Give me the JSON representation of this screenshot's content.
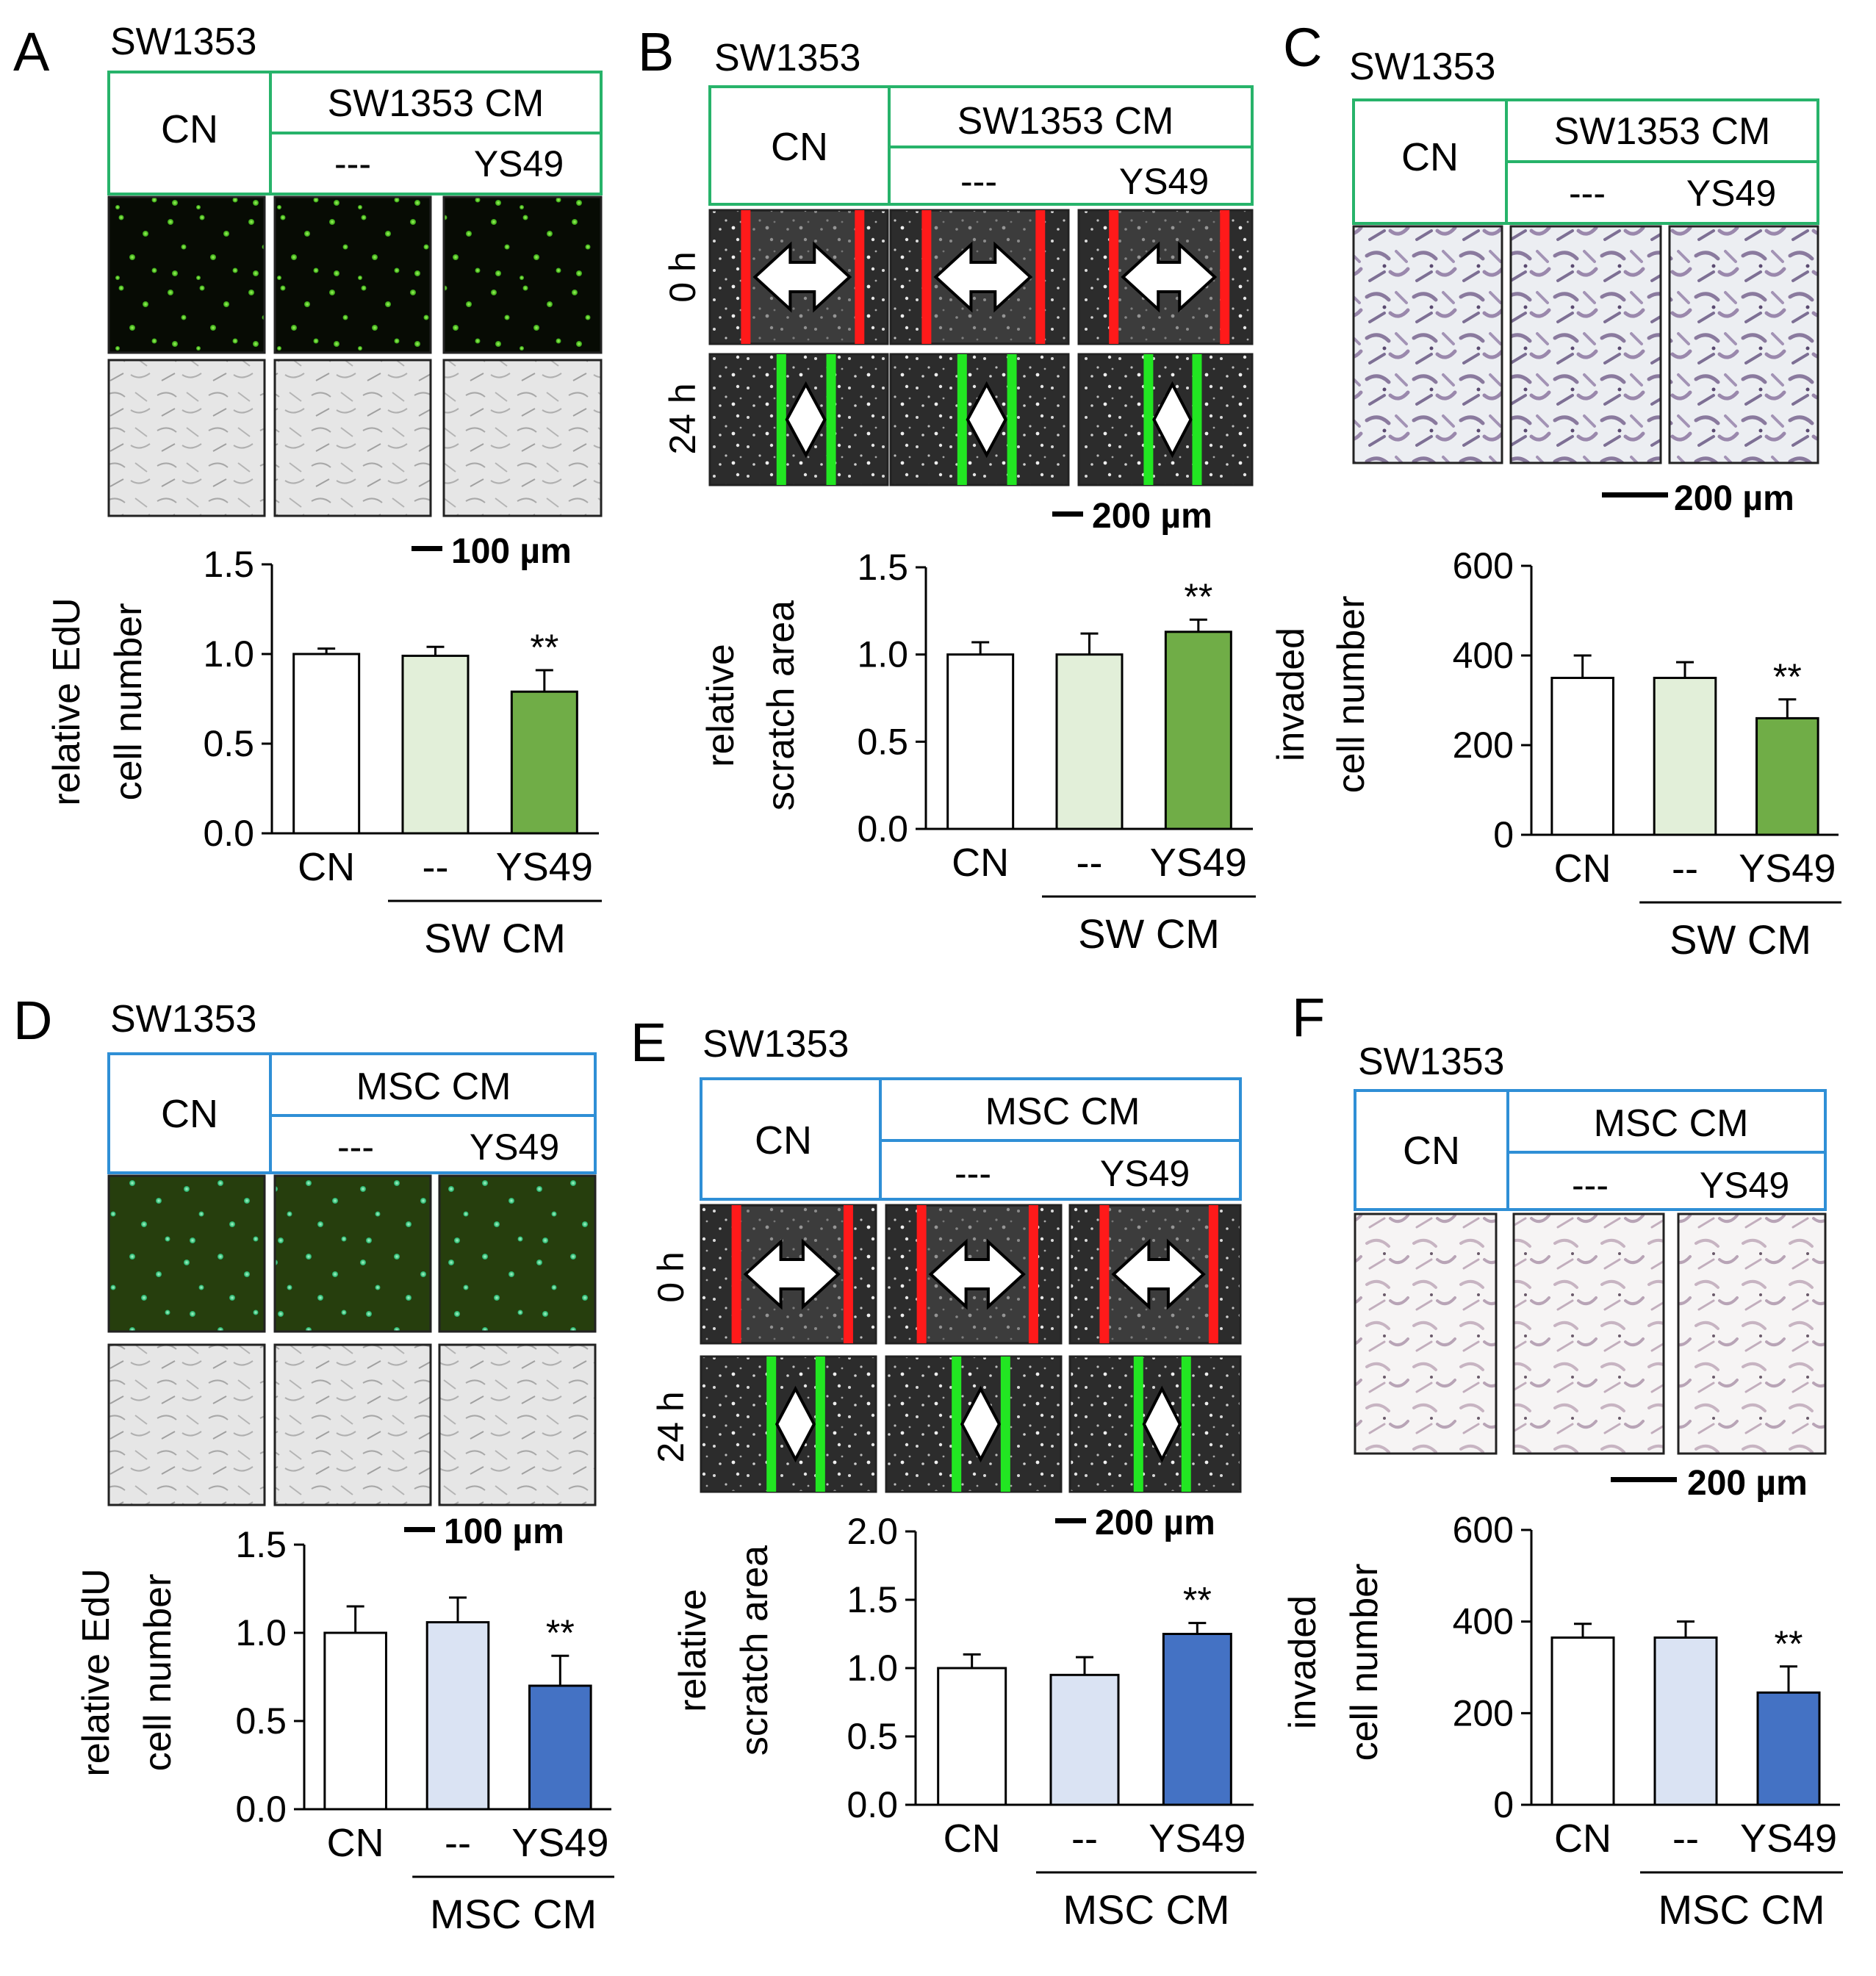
{
  "figure": {
    "cell_line": "SW1353",
    "hdr_cn": "CN",
    "hdr_none": "---",
    "hdr_ys49": "YS49",
    "tick_none": "--",
    "time_0h": "0 h",
    "time_24h": "24 h",
    "colors": {
      "green_frame": "#27b36a",
      "blue_frame": "#2f8fd6",
      "green_light": "#e2efd9",
      "green_dark": "#70ad47",
      "blue_light": "#dae3f3",
      "blue_dark": "#4472c4",
      "red_line": "#ff1a1a",
      "green_line": "#22e622"
    }
  },
  "panels": [
    {
      "letter": "A",
      "cm_label": "SW1353 CM",
      "scale_bar": "100 µm",
      "ylabel": [
        "relative EdU",
        "cell number"
      ],
      "group_label": "SW CM"
    },
    {
      "letter": "B",
      "cm_label": "SW1353 CM",
      "scale_bar": "200 µm",
      "ylabel": [
        "relative",
        "scratch area"
      ],
      "group_label": "SW CM"
    },
    {
      "letter": "C",
      "cm_label": "SW1353 CM",
      "scale_bar": "200 µm",
      "ylabel": [
        "invaded",
        "cell number"
      ],
      "group_label": "SW CM"
    },
    {
      "letter": "D",
      "cm_label": "MSC CM",
      "scale_bar": "100 µm",
      "ylabel": [
        "relative EdU",
        "cell number"
      ],
      "group_label": "MSC CM"
    },
    {
      "letter": "E",
      "cm_label": "MSC CM",
      "scale_bar": "200 µm",
      "ylabel": [
        "relative",
        "scratch area"
      ],
      "group_label": "MSC CM"
    },
    {
      "letter": "F",
      "cm_label": "MSC CM",
      "scale_bar": "200 µm",
      "ylabel": [
        "invaded",
        "cell number"
      ],
      "group_label": "MSC CM"
    }
  ],
  "chart_data": [
    {
      "panel": "A",
      "type": "bar",
      "categories": [
        "CN",
        "--",
        "YS49"
      ],
      "values": [
        1.0,
        0.99,
        0.79
      ],
      "errors": [
        0.03,
        0.05,
        0.12
      ],
      "ylim": [
        0,
        1.5
      ],
      "yticks": [
        "0.0",
        "0.5",
        "1.0",
        "1.5"
      ],
      "significance": [
        "",
        "",
        "**"
      ],
      "xlabel": "SW CM",
      "ylabel": "relative EdU cell number"
    },
    {
      "panel": "B",
      "type": "bar",
      "categories": [
        "CN",
        "--",
        "YS49"
      ],
      "values": [
        1.0,
        1.0,
        1.13
      ],
      "errors": [
        0.07,
        0.12,
        0.07
      ],
      "ylim": [
        0,
        1.5
      ],
      "yticks": [
        "0.0",
        "0.5",
        "1.0",
        "1.5"
      ],
      "significance": [
        "",
        "",
        "**"
      ],
      "xlabel": "SW CM",
      "ylabel": "relative scratch area"
    },
    {
      "panel": "C",
      "type": "bar",
      "categories": [
        "CN",
        "--",
        "YS49"
      ],
      "values": [
        350,
        350,
        260
      ],
      "errors": [
        50,
        35,
        42
      ],
      "ylim": [
        0,
        600
      ],
      "yticks": [
        "0",
        "200",
        "400",
        "600"
      ],
      "significance": [
        "",
        "",
        "**"
      ],
      "xlabel": "SW CM",
      "ylabel": "invaded cell number"
    },
    {
      "panel": "D",
      "type": "bar",
      "categories": [
        "CN",
        "--",
        "YS49"
      ],
      "values": [
        1.0,
        1.06,
        0.7
      ],
      "errors": [
        0.15,
        0.14,
        0.17
      ],
      "ylim": [
        0,
        1.5
      ],
      "yticks": [
        "0.0",
        "0.5",
        "1.0",
        "1.5"
      ],
      "significance": [
        "",
        "",
        "**"
      ],
      "xlabel": "MSC CM",
      "ylabel": "relative EdU cell number"
    },
    {
      "panel": "E",
      "type": "bar",
      "categories": [
        "CN",
        "--",
        "YS49"
      ],
      "values": [
        1.0,
        0.95,
        1.25
      ],
      "errors": [
        0.1,
        0.13,
        0.08
      ],
      "ylim": [
        0,
        2.0
      ],
      "yticks": [
        "0.0",
        "0.5",
        "1.0",
        "1.5",
        "2.0"
      ],
      "significance": [
        "",
        "",
        "**"
      ],
      "xlabel": "MSC CM",
      "ylabel": "relative scratch area"
    },
    {
      "panel": "F",
      "type": "bar",
      "categories": [
        "CN",
        "--",
        "YS49"
      ],
      "values": [
        365,
        365,
        245
      ],
      "errors": [
        30,
        35,
        57
      ],
      "ylim": [
        0,
        600
      ],
      "yticks": [
        "0",
        "200",
        "400",
        "600"
      ],
      "significance": [
        "",
        "",
        "**"
      ],
      "xlabel": "MSC CM",
      "ylabel": "invaded cell number"
    }
  ]
}
